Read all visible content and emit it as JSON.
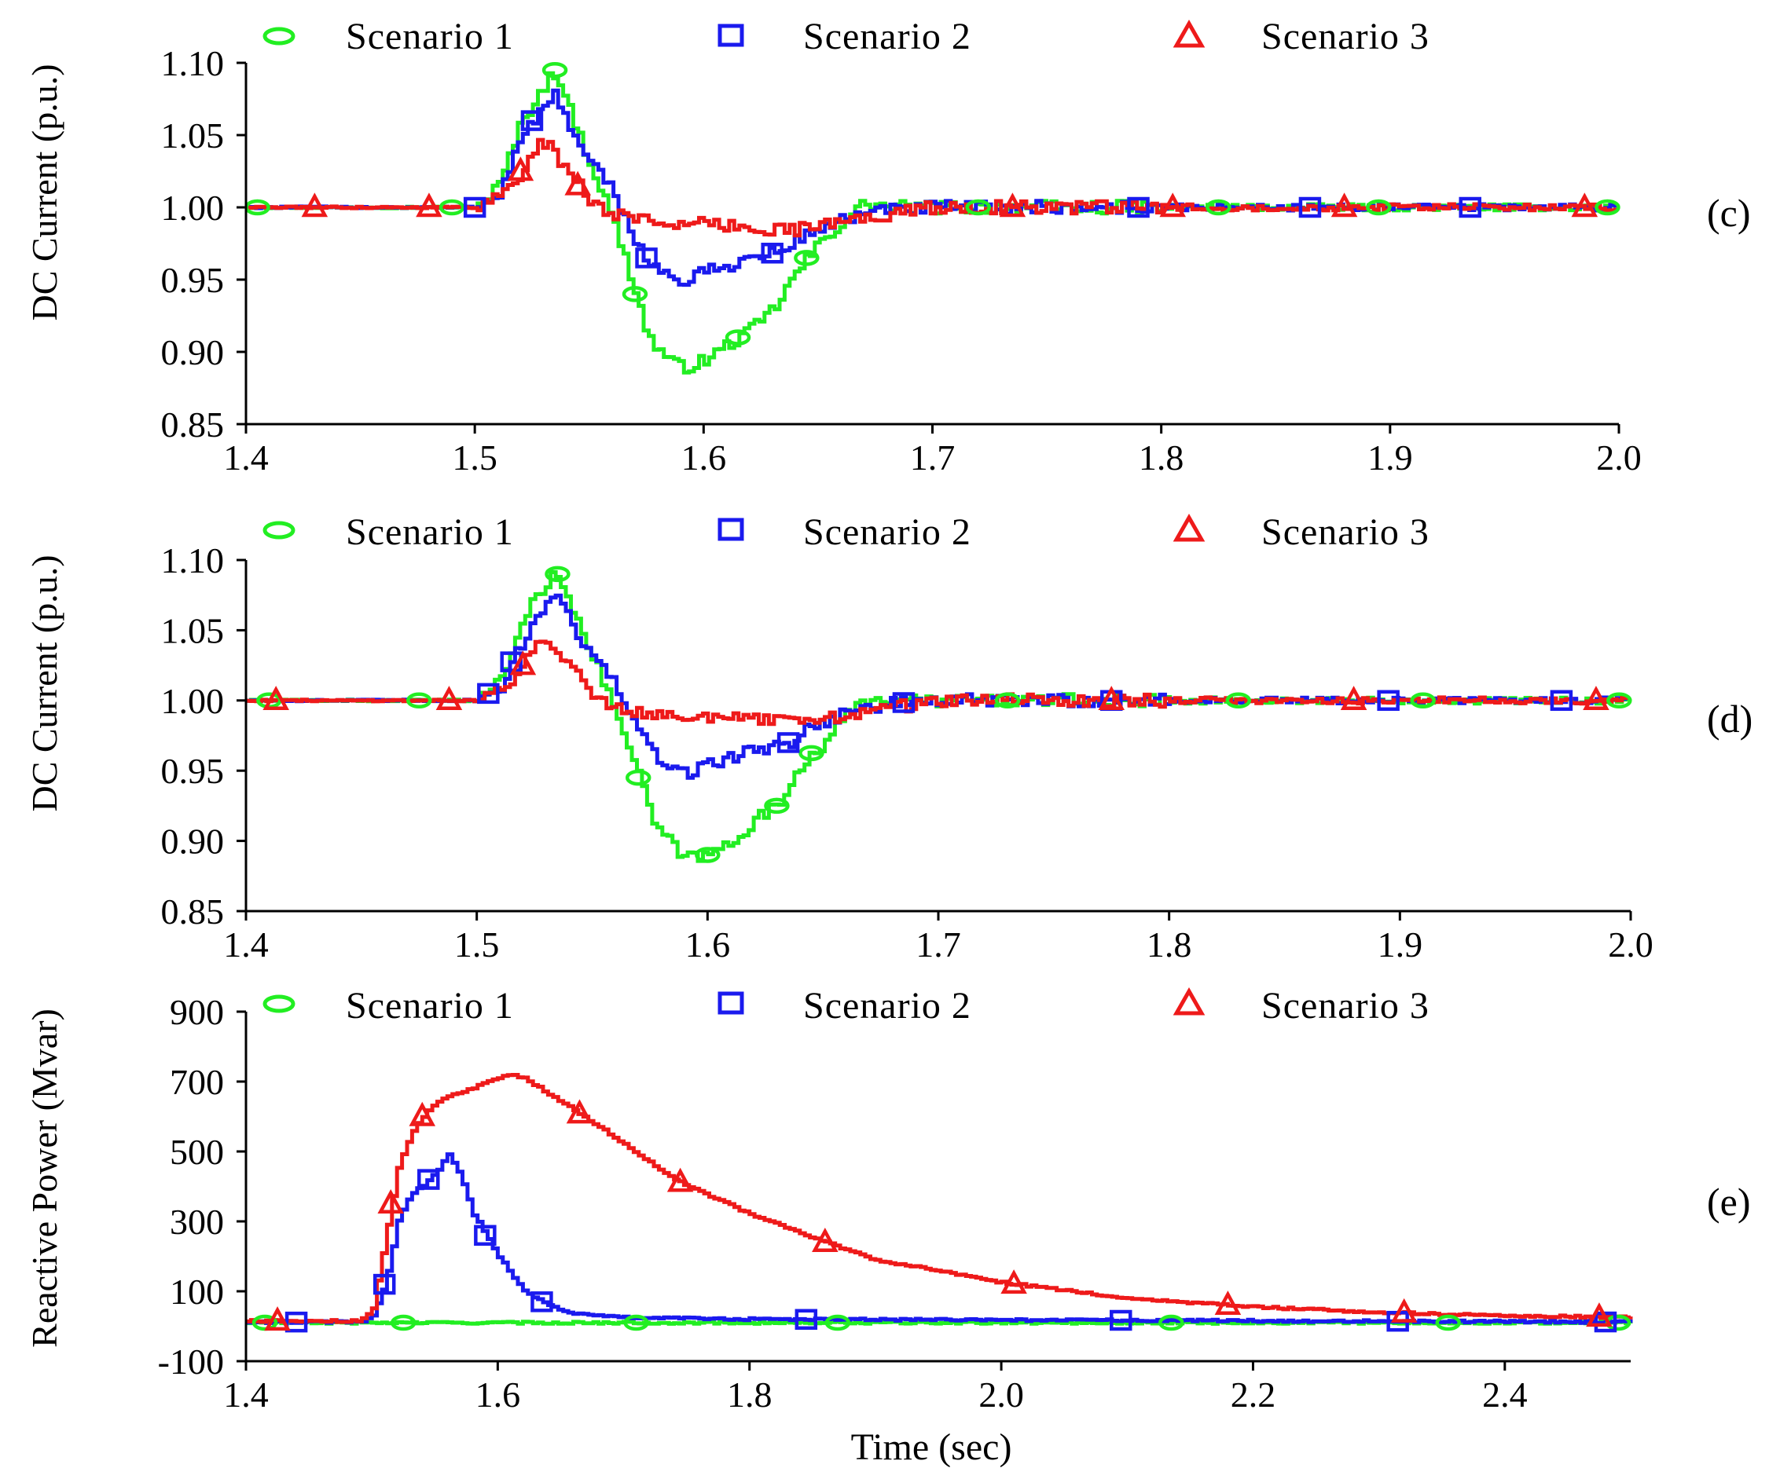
{
  "colors": {
    "scenario_1": "#22ee22",
    "scenario_2": "#1a1aee",
    "scenario_3": "#ee1a1a"
  },
  "chart_data": [
    {
      "type": "line",
      "panel_label": "(c)",
      "ylabel": "DC Current (p.u.)",
      "xlabel": "",
      "xlim": [
        1.4,
        2.0
      ],
      "ylim": [
        0.85,
        1.1
      ],
      "xticks": [
        "1.4",
        "1.5",
        "1.6",
        "1.7",
        "1.8",
        "1.9",
        "2.0"
      ],
      "yticks": [
        "0.85",
        "0.90",
        "0.95",
        "1.00",
        "1.05",
        "1.10"
      ],
      "legend": [
        "Scenario 1",
        "Scenario 2",
        "Scenario 3"
      ],
      "series": [
        {
          "name": "Scenario 1",
          "marker": "circle",
          "color": "#22ee22",
          "x": [
            1.4,
            1.5,
            1.51,
            1.52,
            1.53,
            1.535,
            1.54,
            1.545,
            1.55,
            1.56,
            1.57,
            1.575,
            1.585,
            1.59,
            1.6,
            1.61,
            1.62,
            1.63,
            1.64,
            1.65,
            1.66,
            1.67,
            1.68,
            1.7,
            1.75,
            1.8,
            2.0
          ],
          "y": [
            1.0,
            1.0,
            1.015,
            1.06,
            1.085,
            1.095,
            1.07,
            1.05,
            1.03,
            0.99,
            0.94,
            0.91,
            0.893,
            0.889,
            0.894,
            0.905,
            0.915,
            0.93,
            0.955,
            0.975,
            0.99,
            1.003,
            1.0,
            1.0,
            1.0,
            1.0,
            1.0
          ],
          "markers_x": [
            1.405,
            1.49,
            1.535,
            1.57,
            1.615,
            1.645,
            1.72,
            1.825,
            1.895,
            1.995
          ]
        },
        {
          "name": "Scenario 2",
          "marker": "square",
          "color": "#1a1aee",
          "x": [
            1.4,
            1.5,
            1.51,
            1.52,
            1.53,
            1.535,
            1.545,
            1.56,
            1.57,
            1.58,
            1.59,
            1.6,
            1.62,
            1.635,
            1.64,
            1.65,
            1.66,
            1.68,
            1.7,
            1.75,
            2.0
          ],
          "y": [
            1.0,
            1.0,
            1.01,
            1.05,
            1.07,
            1.078,
            1.04,
            1.01,
            0.975,
            0.955,
            0.948,
            0.955,
            0.965,
            0.97,
            0.978,
            0.985,
            0.992,
            0.998,
            1.0,
            1.0,
            1.0
          ],
          "markers_x": [
            1.5,
            1.525,
            1.575,
            1.63,
            1.79,
            1.865,
            1.935
          ]
        },
        {
          "name": "Scenario 3",
          "marker": "triangle",
          "color": "#ee1a1a",
          "x": [
            1.4,
            1.5,
            1.51,
            1.52,
            1.525,
            1.53,
            1.54,
            1.55,
            1.56,
            1.58,
            1.6,
            1.62,
            1.64,
            1.66,
            1.68,
            1.7,
            1.75,
            2.0
          ],
          "y": [
            1.0,
            1.0,
            1.008,
            1.025,
            1.04,
            1.045,
            1.025,
            1.005,
            0.995,
            0.99,
            0.988,
            0.986,
            0.985,
            0.99,
            0.995,
            1.0,
            1.0,
            1.0
          ],
          "markers_x": [
            1.43,
            1.48,
            1.52,
            1.545,
            1.735,
            1.805,
            1.88,
            1.985
          ]
        }
      ]
    },
    {
      "type": "line",
      "panel_label": "(d)",
      "ylabel": "DC Current (p.u.)",
      "xlabel": "",
      "xlim": [
        1.4,
        2.0
      ],
      "ylim": [
        0.85,
        1.1
      ],
      "xticks": [
        "1.4",
        "1.5",
        "1.6",
        "1.7",
        "1.8",
        "1.9",
        "2.0"
      ],
      "yticks": [
        "0.85",
        "0.90",
        "0.95",
        "1.00",
        "1.05",
        "1.10"
      ],
      "legend": [
        "Scenario 1",
        "Scenario 2",
        "Scenario 3"
      ],
      "series": [
        {
          "name": "Scenario 1",
          "marker": "circle",
          "color": "#22ee22",
          "x": [
            1.4,
            1.5,
            1.51,
            1.52,
            1.53,
            1.535,
            1.54,
            1.545,
            1.55,
            1.56,
            1.57,
            1.575,
            1.585,
            1.59,
            1.6,
            1.61,
            1.62,
            1.63,
            1.64,
            1.65,
            1.66,
            1.67,
            1.68,
            1.7,
            1.75,
            1.8,
            2.0
          ],
          "y": [
            1.0,
            1.0,
            1.015,
            1.06,
            1.085,
            1.09,
            1.07,
            1.05,
            1.03,
            0.99,
            0.945,
            0.915,
            0.895,
            0.888,
            0.89,
            0.9,
            0.915,
            0.925,
            0.955,
            0.97,
            0.99,
            1.003,
            1.0,
            1.0,
            1.0,
            1.0,
            1.0
          ],
          "markers_x": [
            1.41,
            1.475,
            1.535,
            1.57,
            1.6,
            1.63,
            1.645,
            1.73,
            1.83,
            1.91,
            1.995
          ]
        },
        {
          "name": "Scenario 2",
          "marker": "square",
          "color": "#1a1aee",
          "x": [
            1.4,
            1.5,
            1.51,
            1.52,
            1.53,
            1.535,
            1.545,
            1.56,
            1.57,
            1.58,
            1.59,
            1.6,
            1.62,
            1.635,
            1.64,
            1.65,
            1.66,
            1.68,
            1.7,
            1.75,
            2.0
          ],
          "y": [
            1.0,
            1.0,
            1.01,
            1.045,
            1.07,
            1.078,
            1.04,
            1.01,
            0.975,
            0.955,
            0.948,
            0.955,
            0.965,
            0.97,
            0.978,
            0.985,
            0.992,
            0.998,
            1.0,
            1.0,
            1.0
          ],
          "markers_x": [
            1.505,
            1.515,
            1.635,
            1.685,
            1.775,
            1.895,
            1.97
          ]
        },
        {
          "name": "Scenario 3",
          "marker": "triangle",
          "color": "#ee1a1a",
          "x": [
            1.4,
            1.5,
            1.51,
            1.52,
            1.525,
            1.53,
            1.54,
            1.55,
            1.56,
            1.58,
            1.6,
            1.62,
            1.64,
            1.66,
            1.68,
            1.7,
            1.75,
            2.0
          ],
          "y": [
            1.0,
            1.0,
            1.008,
            1.025,
            1.04,
            1.045,
            1.025,
            1.005,
            0.995,
            0.99,
            0.988,
            0.986,
            0.985,
            0.99,
            0.995,
            1.0,
            1.0,
            1.0
          ],
          "markers_x": [
            1.413,
            1.488,
            1.52,
            1.775,
            1.88,
            1.985
          ]
        }
      ]
    },
    {
      "type": "line",
      "panel_label": "(e)",
      "ylabel": "Reactive Power (Mvar)",
      "xlabel": "Time (sec)",
      "xlim": [
        1.4,
        2.5
      ],
      "ylim": [
        -100,
        900
      ],
      "xticks": [
        "1.4",
        "1.6",
        "1.8",
        "2.0",
        "2.2",
        "2.4"
      ],
      "yticks": [
        "-100",
        "100",
        "300",
        "500",
        "700",
        "900"
      ],
      "legend": [
        "Scenario 1",
        "Scenario 2",
        "Scenario 3"
      ],
      "series": [
        {
          "name": "Scenario 1",
          "marker": "circle",
          "color": "#22ee22",
          "x": [
            1.4,
            2.5
          ],
          "y": [
            10,
            10
          ],
          "markers_x": [
            1.415,
            1.525,
            1.71,
            1.87,
            2.135,
            2.355,
            2.49
          ]
        },
        {
          "name": "Scenario 2",
          "marker": "square",
          "color": "#1a1aee",
          "x": [
            1.4,
            1.49,
            1.5,
            1.51,
            1.52,
            1.53,
            1.54,
            1.55,
            1.56,
            1.57,
            1.58,
            1.6,
            1.62,
            1.64,
            1.66,
            1.7,
            1.8,
            2.0,
            2.5
          ],
          "y": [
            12,
            12,
            30,
            120,
            300,
            380,
            400,
            440,
            490,
            430,
            320,
            200,
            100,
            60,
            35,
            25,
            20,
            18,
            12
          ],
          "markers_x": [
            1.44,
            1.51,
            1.545,
            1.59,
            1.635,
            1.845,
            2.095,
            2.315,
            2.48
          ]
        },
        {
          "name": "Scenario 3",
          "marker": "triangle",
          "color": "#ee1a1a",
          "x": [
            1.4,
            1.49,
            1.5,
            1.51,
            1.52,
            1.53,
            1.54,
            1.55,
            1.57,
            1.6,
            1.61,
            1.62,
            1.66,
            1.7,
            1.74,
            1.8,
            1.86,
            1.9,
            2.0,
            2.1,
            2.2,
            2.3,
            2.4,
            2.5
          ],
          "y": [
            15,
            15,
            50,
            250,
            450,
            550,
            600,
            640,
            670,
            710,
            720,
            710,
            620,
            520,
            420,
            320,
            240,
            190,
            125,
            80,
            55,
            40,
            30,
            25
          ],
          "markers_x": [
            1.425,
            1.515,
            1.54,
            1.665,
            1.745,
            1.86,
            2.01,
            2.18,
            2.32,
            2.475
          ]
        }
      ]
    }
  ]
}
